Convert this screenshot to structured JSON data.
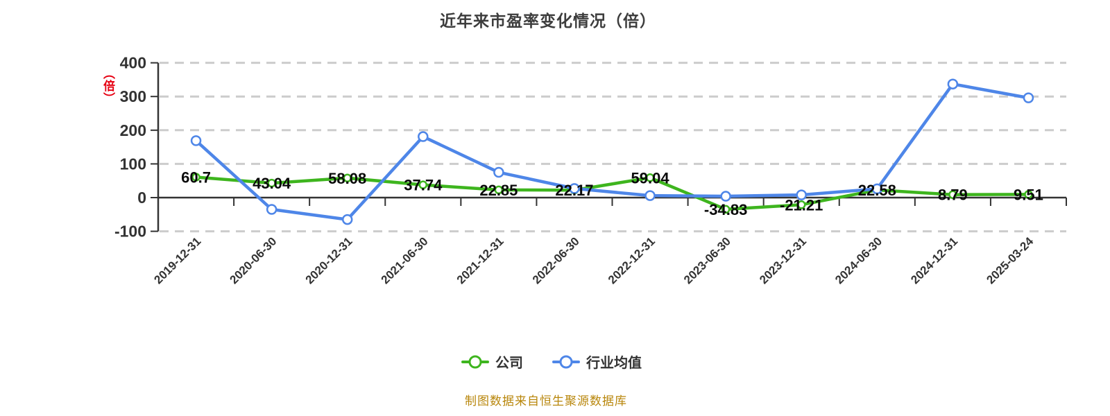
{
  "title": "近年来市盈率变化情况（倍）",
  "y_axis_unit": "（倍）",
  "source_note": "制图数据来自恒生聚源数据库",
  "legend": [
    {
      "label": "公司",
      "color": "#3eb51e"
    },
    {
      "label": "行业均值",
      "color": "#4e86e8"
    }
  ],
  "colors": {
    "company_green": "#3eb51e",
    "industry_blue": "#4e86e8",
    "grid": "#cccccc",
    "axis": "#333333",
    "tick_text": "#333333",
    "data_label": "#0a0a0a",
    "source_note": "#b8860b",
    "y_unit_red": "#e60012"
  },
  "chart_data": {
    "type": "line",
    "title": "近年来市盈率变化情况（倍）",
    "categories": [
      "2019-12-31",
      "2020-06-30",
      "2020-12-31",
      "2021-06-30",
      "2021-12-31",
      "2022-06-30",
      "2022-12-31",
      "2023-06-30",
      "2023-12-31",
      "2024-06-30",
      "2024-12-31",
      "2025-03-24"
    ],
    "series": [
      {
        "name": "公司",
        "color": "#3eb51e",
        "values": [
          60.7,
          43.04,
          58.08,
          37.74,
          22.85,
          22.17,
          59.04,
          -34.83,
          -21.21,
          22.58,
          8.79,
          9.51
        ],
        "labels": [
          "60.7",
          "43.04",
          "58.08",
          "37.74",
          "22.85",
          "22.17",
          "59.04",
          "-34.83",
          "-21.21",
          "22.58",
          "8.79",
          "9.51"
        ],
        "marker_radius": 5
      },
      {
        "name": "行业均值",
        "color": "#4e86e8",
        "values": [
          169,
          -35,
          -65,
          181,
          75,
          27,
          6,
          4,
          8,
          26,
          337,
          296
        ],
        "labels": null,
        "marker_radius": 6.5
      }
    ],
    "ylabel": "（倍）",
    "xlabel": "",
    "ylim": [
      -100,
      400
    ],
    "yticks": [
      -100,
      0,
      100,
      200,
      300,
      400
    ],
    "grid": "dashed-horizontal",
    "x_axis_at_value": 0,
    "x_label_rotation": -45,
    "legend_position": "bottom"
  }
}
